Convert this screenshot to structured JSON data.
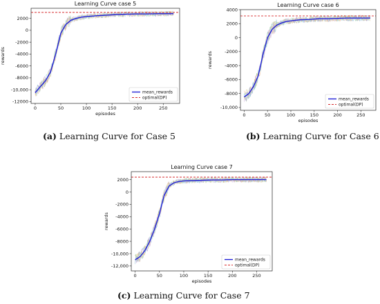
{
  "chart_data": [
    {
      "type": "line",
      "title": "Learning Curve case 5",
      "xlabel": "episodes",
      "ylabel": "rewards",
      "xlim": [
        -8,
        282
      ],
      "ylim": [
        -12300,
        3700
      ],
      "xticks": [
        0,
        50,
        100,
        150,
        200,
        250
      ],
      "xtick_labels": [
        "0",
        "50",
        "100",
        "150",
        "200",
        "250"
      ],
      "yticks": [
        -12000,
        -10000,
        -8000,
        -6000,
        -4000,
        -2000,
        0,
        2000
      ],
      "ytick_labels": [
        "-12000",
        "-10,000",
        "-8000",
        "-6000",
        "-4000",
        "-2000",
        "0",
        "2000"
      ],
      "grid": false,
      "legend": "bottom-right",
      "series": [
        {
          "name": "mean_rewards",
          "color": "#1f1fd6",
          "style": "solid",
          "x": [
            0,
            10,
            20,
            30,
            40,
            50,
            60,
            70,
            80,
            90,
            100,
            120,
            140,
            160,
            180,
            200,
            220,
            240,
            260,
            270
          ],
          "values": [
            -10500,
            -9500,
            -8500,
            -7000,
            -4000,
            -500,
            1000,
            1700,
            2000,
            2200,
            2300,
            2450,
            2550,
            2650,
            2700,
            2750,
            2750,
            2800,
            2800,
            2800
          ]
        },
        {
          "name": "optimal(DP)",
          "color": "#d62728",
          "style": "dashed",
          "x": [
            -8,
            282
          ],
          "values": [
            3000,
            3000
          ]
        }
      ]
    },
    {
      "type": "line",
      "title": "Learning Curve case 6",
      "xlabel": "episodes",
      "ylabel": "rewards",
      "xlim": [
        -8,
        282
      ],
      "ylim": [
        -10400,
        4000
      ],
      "xticks": [
        0,
        50,
        100,
        150,
        200,
        250
      ],
      "xtick_labels": [
        "0",
        "50",
        "100",
        "150",
        "200",
        "250"
      ],
      "yticks": [
        -10000,
        -8000,
        -6000,
        -4000,
        -2000,
        0,
        2000,
        4000
      ],
      "ytick_labels": [
        "-10,000",
        "-8000",
        "-6000",
        "-4000",
        "-2000",
        "0",
        "2000",
        "4000"
      ],
      "grid": false,
      "legend": "bottom-right",
      "series": [
        {
          "name": "mean_rewards",
          "color": "#1f1fd6",
          "style": "solid",
          "x": [
            0,
            10,
            20,
            30,
            40,
            50,
            60,
            70,
            80,
            90,
            100,
            120,
            140,
            160,
            180,
            200,
            220,
            240,
            260,
            270
          ],
          "values": [
            -8500,
            -8000,
            -7000,
            -5500,
            -2500,
            0,
            1200,
            1800,
            2100,
            2300,
            2400,
            2550,
            2600,
            2700,
            2700,
            2750,
            2800,
            2800,
            2800,
            2800
          ]
        },
        {
          "name": "optimal(DP)",
          "color": "#d62728",
          "style": "dashed",
          "x": [
            -8,
            282
          ],
          "values": [
            3100,
            3100
          ]
        }
      ]
    },
    {
      "type": "line",
      "title": "Learning Curve case 7",
      "xlabel": "episodes",
      "ylabel": "rewards",
      "xlim": [
        -8,
        282
      ],
      "ylim": [
        -12800,
        3300
      ],
      "xticks": [
        0,
        50,
        100,
        150,
        200,
        250
      ],
      "xtick_labels": [
        "0",
        "50",
        "100",
        "150",
        "200",
        "250"
      ],
      "yticks": [
        -12000,
        -10000,
        -8000,
        -6000,
        -4000,
        -2000,
        0,
        2000
      ],
      "ytick_labels": [
        "-12,000",
        "-10,000",
        "-8000",
        "-6000",
        "-4000",
        "-2000",
        "0",
        "2000"
      ],
      "grid": false,
      "legend": "bottom-right",
      "series": [
        {
          "name": "mean_rewards",
          "color": "#1f1fd6",
          "style": "solid",
          "x": [
            0,
            10,
            20,
            30,
            40,
            50,
            60,
            70,
            80,
            90,
            100,
            120,
            140,
            160,
            180,
            200,
            220,
            240,
            260,
            270
          ],
          "values": [
            -11000,
            -10500,
            -9500,
            -8000,
            -6000,
            -3500,
            -500,
            1000,
            1500,
            1700,
            1800,
            1850,
            1900,
            1950,
            1950,
            2000,
            2000,
            2000,
            2000,
            2000
          ]
        },
        {
          "name": "optimal(DP)",
          "color": "#d62728",
          "style": "dashed",
          "x": [
            -8,
            282
          ],
          "values": [
            2400,
            2400
          ]
        }
      ]
    }
  ],
  "captions": [
    {
      "label": "(a)",
      "text": "Learning Curve for Case 5"
    },
    {
      "label": "(b)",
      "text": "Learning Curve for Case 6"
    },
    {
      "label": "(c)",
      "text": "Learning Curve for Case 7"
    }
  ],
  "noise_colors": [
    "#8fb8d8",
    "#9fd0a0",
    "#e8b08a",
    "#c8a0d8",
    "#d8c890",
    "#a8d8d8"
  ]
}
